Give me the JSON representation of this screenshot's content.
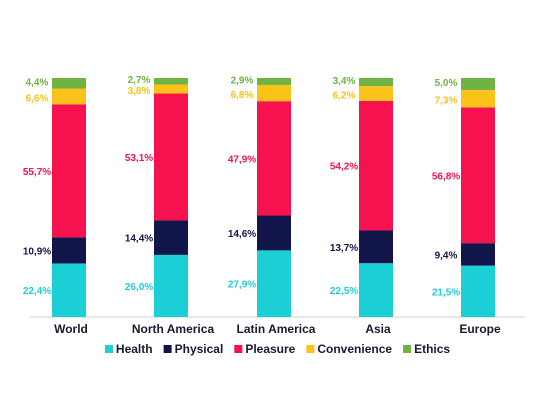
{
  "chart_data": {
    "type": "bar",
    "stacked": true,
    "normalized": true,
    "categories": [
      "World",
      "North America",
      "Latin America",
      "Asia",
      "Europe"
    ],
    "series": [
      {
        "name": "Health",
        "color": "#1ccfd6",
        "values": [
          22.4,
          26.0,
          27.9,
          22.5,
          21.5
        ],
        "labels": [
          "22,4%",
          "26,0%",
          "27,9%",
          "22,5%",
          "21,5%"
        ]
      },
      {
        "name": "Physical",
        "color": "#12154a",
        "values": [
          10.9,
          14.4,
          14.6,
          13.7,
          9.4
        ],
        "labels": [
          "10,9%",
          "14,4%",
          "14,6%",
          "13,7%",
          "9,4%"
        ]
      },
      {
        "name": "Pleasure",
        "color": "#f5124e",
        "values": [
          55.7,
          53.1,
          47.9,
          54.2,
          56.8
        ],
        "labels": [
          "55,7%",
          "53,1%",
          "47,9%",
          "54,2%",
          "56,8%"
        ]
      },
      {
        "name": "Convenience",
        "color": "#fbc21a",
        "values": [
          6.6,
          3.8,
          6.8,
          6.2,
          7.3
        ],
        "labels": [
          "6,6%",
          "3,8%",
          "6,8%",
          "6,2%",
          "7,3%"
        ]
      },
      {
        "name": "Ethics",
        "color": "#6fb342",
        "values": [
          4.4,
          2.7,
          2.9,
          3.4,
          5.0
        ],
        "labels": [
          "4,4%",
          "2,7%",
          "2,9%",
          "3,4%",
          "5,0%"
        ]
      }
    ],
    "legend_position": "bottom",
    "grid": false
  }
}
